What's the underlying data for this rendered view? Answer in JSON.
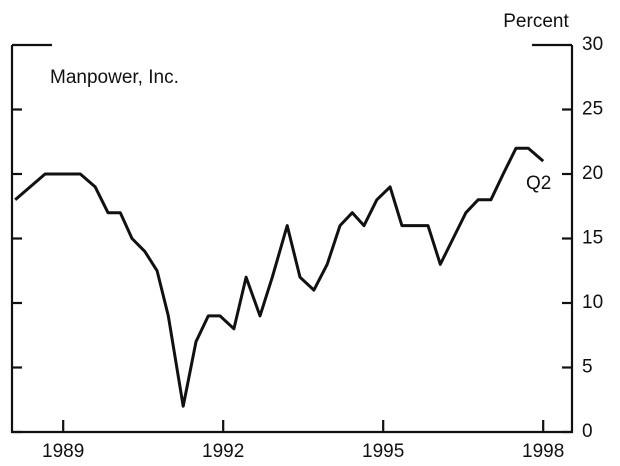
{
  "chart_data": {
    "type": "line",
    "y_label": "Percent",
    "annotations": [
      "Manpower, Inc.",
      "Q2"
    ],
    "x": [
      1988.1,
      1988.66,
      1989.32,
      1989.6,
      1989.84,
      1990.07,
      1990.29,
      1990.53,
      1990.76,
      1990.97,
      1991.25,
      1991.49,
      1991.72,
      1991.94,
      1992.2,
      1992.43,
      1992.69,
      1992.92,
      1993.2,
      1993.44,
      1993.7,
      1993.95,
      1994.19,
      1994.42,
      1994.64,
      1994.88,
      1995.13,
      1995.35,
      1995.58,
      1995.84,
      1996.07,
      1996.31,
      1996.55,
      1996.78,
      1997.02,
      1997.25,
      1997.49,
      1997.72,
      1998.0
    ],
    "values": [
      18,
      20,
      20,
      19,
      17,
      17,
      15,
      14,
      12.5,
      9,
      2,
      7,
      9,
      9,
      8,
      12,
      9,
      12,
      16,
      12,
      11,
      13,
      16,
      17,
      16,
      18,
      19,
      16,
      16,
      16,
      13,
      15,
      17,
      18,
      18,
      20,
      22,
      22,
      21
    ],
    "color": "#111111",
    "xlim": [
      1988.04,
      1998.54
    ],
    "xticks": [
      1989,
      1992,
      1995,
      1998
    ],
    "ylim": [
      0,
      30
    ],
    "yticks": [
      0,
      5,
      10,
      15,
      20,
      25,
      30
    ]
  }
}
